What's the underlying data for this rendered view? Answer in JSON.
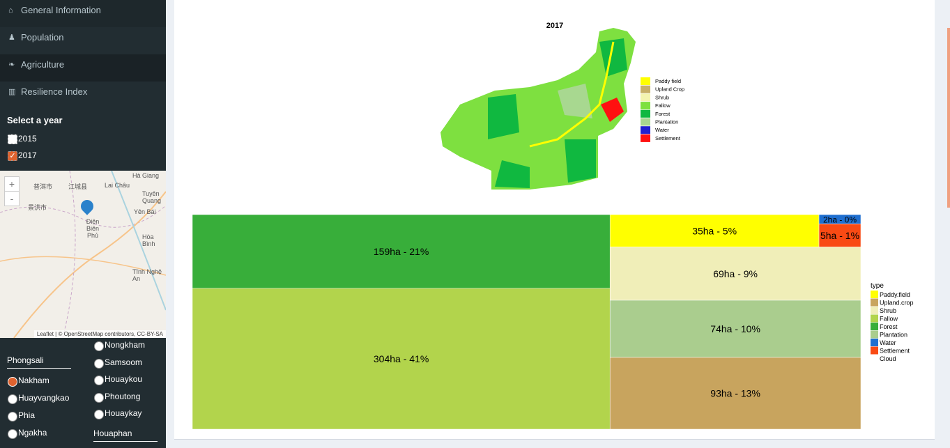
{
  "sidebar": {
    "menu": [
      "General Information",
      "Population",
      "Agriculture",
      "Resilience Index"
    ],
    "year_label": "Select a year",
    "years": [
      "2015",
      "2017"
    ],
    "map": {
      "places": [
        "Hà Giang",
        "普洱市",
        "江城县",
        "Lai Châu",
        "Tuyên Quang",
        "景洪市",
        "Yên Bái",
        "Điện Biên Phủ",
        "Hòa Bình",
        "Tĩnh Nghệ An"
      ],
      "zoom_in": "+",
      "zoom_out": "-",
      "attribution": "Leaflet | © OpenStreetMap contributors, CC-BY-SA"
    },
    "district": "Phongsali",
    "villages": [
      "Nakham",
      "Huayvangkao",
      "Phia",
      "Ngakha"
    ],
    "more_villages": [
      "Nongkham",
      "Samsoom",
      "Houaykou",
      "Phoutong",
      "Houaykay"
    ],
    "next_district": "Houaphan"
  },
  "landuse_map": {
    "title": "2017",
    "legend": [
      {
        "name": "Paddy field",
        "color": "#ffff00"
      },
      {
        "name": "Upland Crop",
        "color": "#c8b068"
      },
      {
        "name": "Shrub",
        "color": "#f4f4b0"
      },
      {
        "name": "Fallow",
        "color": "#7ee040"
      },
      {
        "name": "Forest",
        "color": "#10b840"
      },
      {
        "name": "Plantation",
        "color": "#a8d890"
      },
      {
        "name": "Water",
        "color": "#2020d0"
      },
      {
        "name": "Settlement",
        "color": "#ff1010"
      }
    ]
  },
  "chart_data": {
    "type": "treemap",
    "legend_title": "type",
    "categories": [
      "Paddy.field",
      "Upland.crop",
      "Shrub",
      "Fallow",
      "Forest",
      "Plantation",
      "Water",
      "Settlement",
      "Cloud"
    ],
    "values": [
      35,
      93,
      69,
      304,
      159,
      74,
      2,
      5,
      null
    ],
    "value_labels": [
      "35ha - 5%",
      "93ha - 13%",
      "69ha - 9%",
      "304ha - 41%",
      "159ha - 21%",
      "74ha - 10%",
      "2ha - 0%",
      "5ha - 1%",
      null
    ],
    "colors": [
      "#ffff00",
      "#c8a45e",
      "#f0eeb8",
      "#b2d44c",
      "#38ae3a",
      "#aacd8e",
      "#1f6fd0",
      "#f94a14",
      null
    ]
  }
}
